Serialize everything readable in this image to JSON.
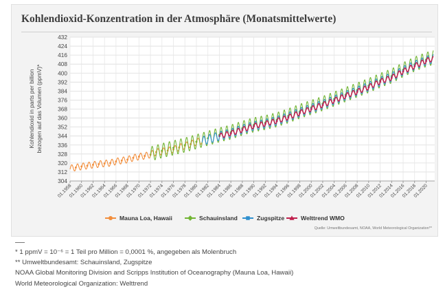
{
  "page": {
    "title": "Kohlendioxid-Konzentration in der Atmosphäre (Monatsmittelwerte)",
    "source": "Quelle: Umweltbundesamt, NOAA, World Meteorological Organization**",
    "footnotes": [
      "* 1 ppmV = 10⁻⁶ = 1 Teil pro Million = 0,0001 %, angegeben als Molenbruch",
      "** Umweltbundesamt: Schauinsland, Zugspitze",
      "NOAA Global Monitoring Division and Scripps Institution of Oceanography (Mauna Loa, Hawaii)",
      "World Meteorological Organization: Welttrend"
    ]
  },
  "chart_data": {
    "type": "line",
    "title": "Kohlendioxid-Konzentration in der Atmosphäre (Monatsmittelwerte)",
    "xlabel": "",
    "ylabel": "Kohlendioxid in parts per billion bezogen auf das Volumen (ppmV)*",
    "ylabel_lines": [
      "Kohlendioxid in parts per billion",
      "bezogen auf das Volumen (ppmV)*"
    ],
    "ylim": [
      304,
      432
    ],
    "yticks": [
      304,
      312,
      320,
      328,
      336,
      344,
      352,
      360,
      368,
      376,
      384,
      392,
      400,
      408,
      416,
      424,
      432
    ],
    "xlim": [
      1958,
      2021.5
    ],
    "xticks": [
      "01.1958",
      "01.1960",
      "01.1962",
      "01.1964",
      "01.1966",
      "01.1968",
      "01.1970",
      "01.1972",
      "01.1974",
      "01.1976",
      "01.1978",
      "01.1980",
      "01.1982",
      "01.1984",
      "01.1986",
      "01.1988",
      "01.1990",
      "01.1992",
      "01.1994",
      "01.1996",
      "01.1998",
      "01.2000",
      "01.2002",
      "01.2004",
      "01.2006",
      "01.2008",
      "01.2010",
      "01.2012",
      "01.2014",
      "01.2016",
      "01.2018",
      "01.2020"
    ],
    "grid": true,
    "legend_position": "bottom",
    "series": [
      {
        "name": "Mauna Loa, Hawaii",
        "color": "#f28e3c",
        "marker": "circle",
        "x": [
          1958,
          1959,
          1960,
          1961,
          1962,
          1963,
          1964,
          1965,
          1966,
          1967,
          1968,
          1969,
          1970,
          1971,
          1972,
          1973,
          1974,
          1975,
          1976,
          1977,
          1978,
          1979,
          1980,
          1981
        ],
        "trend": [
          315.3,
          316.0,
          316.9,
          317.6,
          318.4,
          319.0,
          319.6,
          320.0,
          321.4,
          322.2,
          323.0,
          324.6,
          325.7,
          326.3,
          327.5,
          329.7,
          330.2,
          331.1,
          332.0,
          333.8,
          335.4,
          336.8,
          338.7,
          339.9
        ],
        "amplitude": 3.0
      },
      {
        "name": "Schauinsland",
        "color": "#72b534",
        "marker": "diamond",
        "x": [
          1972,
          1974,
          1976,
          1978,
          1980,
          1982,
          1984,
          1986,
          1988,
          1990,
          1992,
          1994,
          1996,
          1998,
          2000,
          2002,
          2004,
          2006,
          2008,
          2010,
          2012,
          2014,
          2016,
          2018,
          2020,
          2021.3
        ],
        "trend": [
          328.0,
          331.0,
          333.5,
          336.0,
          339.0,
          342.0,
          345.0,
          347.5,
          351.0,
          354.0,
          356.0,
          358.5,
          362.0,
          366.0,
          369.5,
          373.0,
          377.0,
          381.0,
          385.0,
          389.0,
          393.5,
          397.5,
          403.0,
          408.0,
          412.0,
          414.0
        ],
        "amplitude": 6.5
      },
      {
        "name": "Zugspitze",
        "color": "#2e8fce",
        "marker": "square",
        "x": [
          1981,
          1984,
          1986,
          1988,
          1990,
          1992,
          1994,
          1996,
          1998,
          2000,
          2002,
          2004,
          2006,
          2008,
          2010,
          2012,
          2014,
          2016,
          2018,
          2020,
          2021.3
        ],
        "trend": [
          339.5,
          344.0,
          346.5,
          350.0,
          353.0,
          355.0,
          357.5,
          361.0,
          365.0,
          368.5,
          372.0,
          376.0,
          380.0,
          384.0,
          388.0,
          392.5,
          396.5,
          402.0,
          407.0,
          411.0,
          413.0
        ],
        "amplitude": 4.0
      },
      {
        "name": "Welttrend WMO",
        "color": "#c01f4c",
        "marker": "triangle",
        "x": [
          1984,
          1986,
          1988,
          1990,
          1992,
          1994,
          1996,
          1998,
          2000,
          2002,
          2004,
          2006,
          2008,
          2010,
          2012,
          2014,
          2016,
          2018,
          2020,
          2021.3
        ],
        "trend": [
          344.0,
          346.5,
          349.7,
          353.0,
          355.0,
          357.5,
          360.7,
          364.7,
          368.2,
          371.8,
          375.7,
          379.8,
          383.5,
          387.6,
          392.5,
          396.0,
          401.6,
          406.3,
          411.0,
          413.0
        ],
        "amplitude": 2.3
      }
    ]
  }
}
